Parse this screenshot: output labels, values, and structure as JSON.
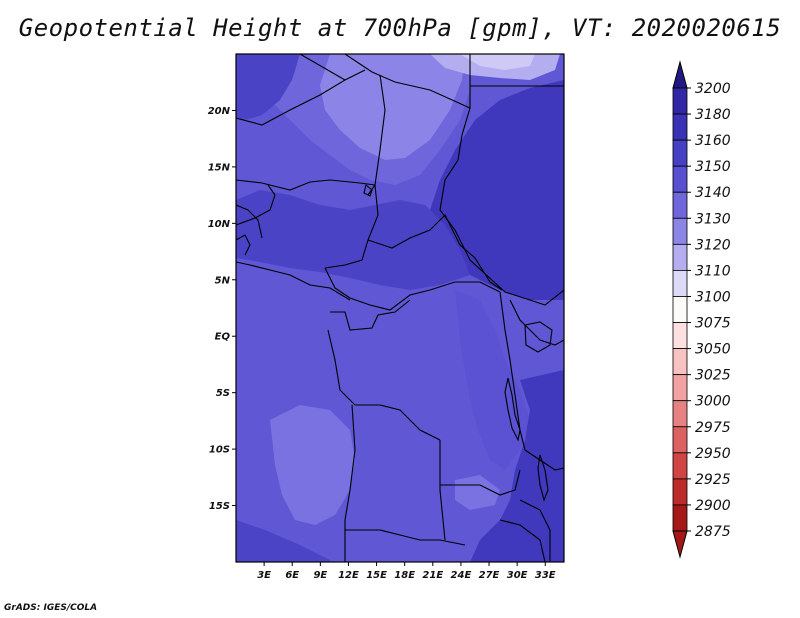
{
  "title": "Geopotential Height at 700hPa [gpm], VT: 2020020615",
  "credit": "GrADS: IGES/COLA",
  "map": {
    "lon_range": [
      0,
      35
    ],
    "lat_range": [
      -20,
      25
    ],
    "lat_ticks": [
      {
        "value": 20,
        "label": "20N"
      },
      {
        "value": 15,
        "label": "15N"
      },
      {
        "value": 10,
        "label": "10N"
      },
      {
        "value": 5,
        "label": "5N"
      },
      {
        "value": 0,
        "label": "EQ"
      },
      {
        "value": -5,
        "label": "5S"
      },
      {
        "value": -10,
        "label": "10S"
      },
      {
        "value": -15,
        "label": "15S"
      }
    ],
    "lon_ticks": [
      {
        "value": 3,
        "label": "3E"
      },
      {
        "value": 6,
        "label": "6E"
      },
      {
        "value": 9,
        "label": "9E"
      },
      {
        "value": 12,
        "label": "12E"
      },
      {
        "value": 15,
        "label": "15E"
      },
      {
        "value": 18,
        "label": "18E"
      },
      {
        "value": 21,
        "label": "21E"
      },
      {
        "value": 24,
        "label": "24E"
      },
      {
        "value": 27,
        "label": "27E"
      },
      {
        "value": 30,
        "label": "30E"
      },
      {
        "value": 33,
        "label": "33E"
      }
    ]
  },
  "colorbar": {
    "levels": [
      {
        "label": "3200",
        "color": "#2a1f96"
      },
      {
        "label": "3180",
        "color": "#3127a6"
      },
      {
        "label": "3160",
        "color": "#3a32b5"
      },
      {
        "label": "3150",
        "color": "#4640c4"
      },
      {
        "label": "3140",
        "color": "#5850d0"
      },
      {
        "label": "3130",
        "color": "#6f66dc"
      },
      {
        "label": "3120",
        "color": "#8c84e6"
      },
      {
        "label": "3110",
        "color": "#b4aef0"
      },
      {
        "label": "3100",
        "color": "#dcdaf7"
      },
      {
        "label": "3075",
        "color": "#fffafa"
      },
      {
        "label": "3050",
        "color": "#fde0e0"
      },
      {
        "label": "3025",
        "color": "#f8c2c2"
      },
      {
        "label": "3000",
        "color": "#f2a2a2"
      },
      {
        "label": "2975",
        "color": "#e88282"
      },
      {
        "label": "2950",
        "color": "#dc6262"
      },
      {
        "label": "2925",
        "color": "#d04444"
      },
      {
        "label": "2900",
        "color": "#bc2a2a"
      },
      {
        "label": "2875",
        "color": "#a51818"
      }
    ],
    "top_cap_color": "#221884",
    "bottom_cap_color": "#a51818"
  }
}
